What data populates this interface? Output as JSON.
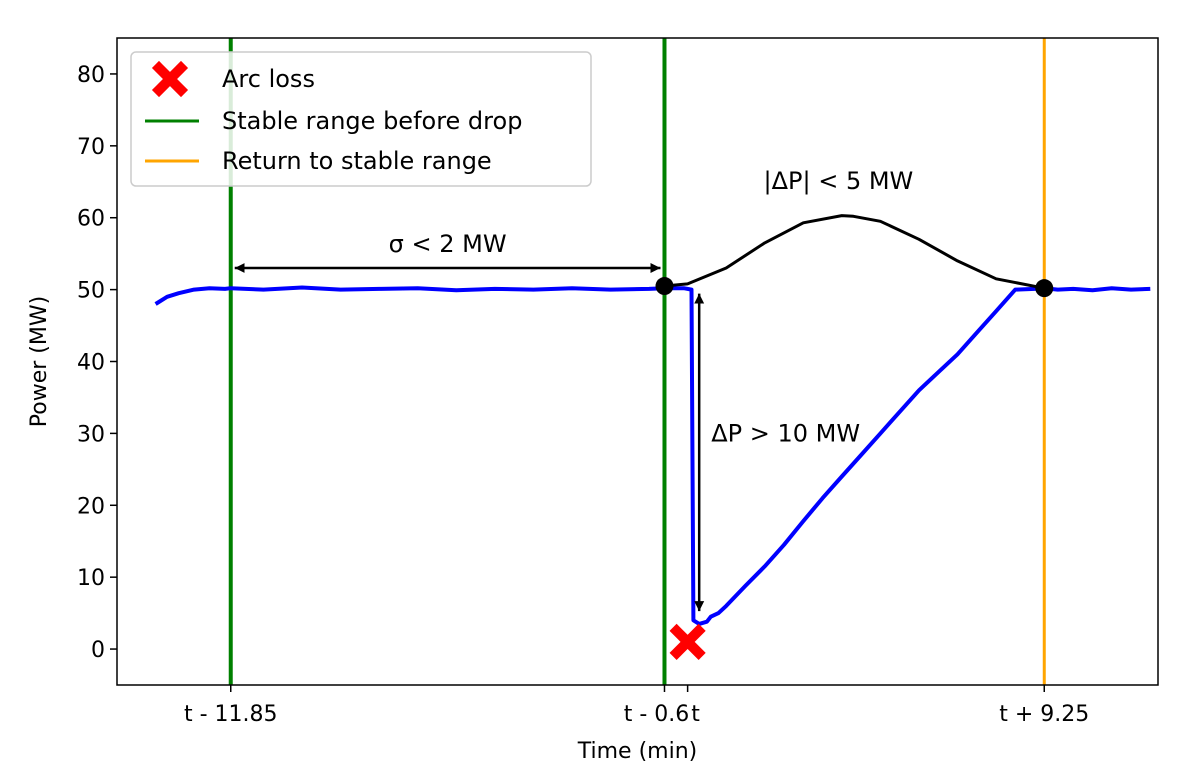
{
  "chart_data": {
    "type": "line",
    "xlabel": "Time (min)",
    "ylabel": "Power (MW)",
    "xlim": [
      -14.8,
      12.2
    ],
    "ylim": [
      -5,
      85
    ],
    "yticks": [
      0,
      10,
      20,
      30,
      40,
      50,
      60,
      70,
      80
    ],
    "xticks": [
      {
        "value": -11.85,
        "label": "t - 11.85"
      },
      {
        "value": -0.6,
        "label": "t - 0.6"
      },
      {
        "value": 0,
        "label": "t"
      },
      {
        "value": 9.25,
        "label": "t + 9.25"
      }
    ],
    "grid": false,
    "legend_position": "top-left",
    "legend": [
      {
        "label": "Arc loss",
        "marker": "X",
        "color": "#ff0000"
      },
      {
        "label": "Stable range before drop",
        "color": "#008000"
      },
      {
        "label": "Return to stable range",
        "color": "#ffa500"
      }
    ],
    "series": [
      {
        "name": "",
        "color": "#0000ff",
        "x": [
          -13.8,
          -13.5,
          -13.2,
          -12.8,
          -12.4,
          -12.0,
          -11.85,
          -11.0,
          -10.0,
          -9.0,
          -8.0,
          -7.0,
          -6.0,
          -5.0,
          -4.0,
          -3.0,
          -2.0,
          -1.0,
          -0.6,
          -0.1,
          0.1,
          0.15,
          0.3,
          0.5,
          0.6,
          0.8,
          1.0,
          1.5,
          2.0,
          2.5,
          3.0,
          3.5,
          4.0,
          4.5,
          5.0,
          5.5,
          6.0,
          6.5,
          7.0,
          7.5,
          8.0,
          8.5,
          9.0,
          9.25,
          9.6,
          10.0,
          10.5,
          11.0,
          11.5,
          12.0
        ],
        "y": [
          48,
          49,
          49.5,
          50,
          50.2,
          50.1,
          50.2,
          50.0,
          50.3,
          50.0,
          50.1,
          50.2,
          49.9,
          50.1,
          50.0,
          50.2,
          50.0,
          50.1,
          50.2,
          50.2,
          50.0,
          4,
          3.5,
          3.8,
          4.5,
          5,
          6,
          8.8,
          11.5,
          14.5,
          17.8,
          21,
          24,
          27,
          30,
          33,
          36,
          38.5,
          41,
          44,
          47,
          50,
          50.1,
          50.2,
          50.0,
          50.1,
          49.9,
          50.2,
          50.0,
          50.1
        ]
      },
      {
        "name": "",
        "color": "#000000",
        "x": [
          -0.6,
          0.0,
          1.0,
          2.0,
          3.0,
          4.0,
          4.3,
          5.0,
          6.0,
          7.0,
          8.0,
          9.25
        ],
        "y": [
          50.5,
          50.8,
          53,
          56.5,
          59.3,
          60.3,
          60.2,
          59.5,
          57,
          54,
          51.5,
          50.2
        ]
      }
    ],
    "stable_before": {
      "x": [
        -11.85,
        -0.6
      ],
      "color": "#008000"
    },
    "stable_after": {
      "x": 9.25,
      "color": "#ffa500"
    },
    "arc_loss_point": {
      "x": 0,
      "y": 1
    },
    "dots": [
      {
        "x": -0.6,
        "y": 50.5
      },
      {
        "x": 9.25,
        "y": 50.2
      }
    ],
    "annotations": {
      "sigma": "σ < 2 MW",
      "delta_p": "ΔP > 10 MW",
      "abs_delta_p": "|ΔP| < 5 MW"
    },
    "annotation_arrows": {
      "sigma": {
        "x": [
          -11.85,
          -0.6
        ],
        "y": 53
      },
      "delta_p": {
        "x": 0.3,
        "y": [
          50,
          5
        ]
      }
    }
  }
}
